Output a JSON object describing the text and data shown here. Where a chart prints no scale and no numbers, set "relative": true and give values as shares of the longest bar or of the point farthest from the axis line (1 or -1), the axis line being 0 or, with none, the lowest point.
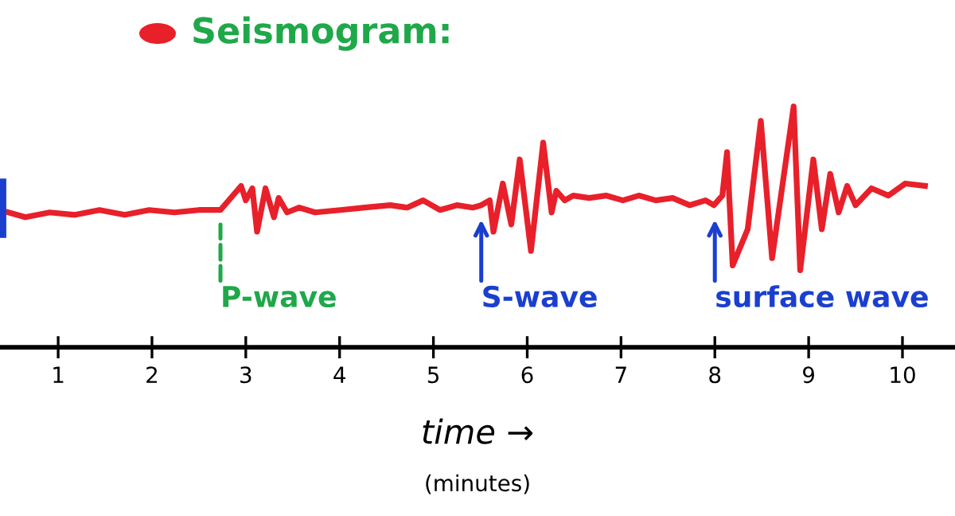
{
  "chart_data": {
    "type": "line",
    "title": "Seismogram:",
    "xlabel": "time →",
    "relative": true,
    "x": [
      0.47,
      0.65,
      0.91,
      1.18,
      1.44,
      1.71,
      1.97,
      2.24,
      2.5,
      2.73,
      2.95,
      3.0,
      3.07,
      3.12,
      3.21,
      3.3,
      3.35,
      3.44,
      3.57,
      3.74,
      4.01,
      4.27,
      4.54,
      4.72,
      4.89,
      5.07,
      5.25,
      5.42,
      5.51,
      5.6,
      5.64,
      5.74,
      5.83,
      5.92,
      6.04,
      6.17,
      6.26,
      6.31,
      6.4,
      6.49,
      6.66,
      6.84,
      7.02,
      7.19,
      7.37,
      7.55,
      7.73,
      7.9,
      7.99,
      8.08,
      8.13,
      8.19,
      8.35,
      8.49,
      8.61,
      8.84,
      8.91,
      9.05,
      9.14,
      9.23,
      9.32,
      9.41,
      9.5,
      9.67,
      9.85,
      10.03,
      10.24
    ],
    "series": [
      {
        "color": "#e8202a",
        "values": [
          0.56,
          0.54,
          0.56,
          0.55,
          0.57,
          0.55,
          0.57,
          0.56,
          0.57,
          0.57,
          0.67,
          0.61,
          0.66,
          0.48,
          0.66,
          0.54,
          0.62,
          0.56,
          0.58,
          0.56,
          0.57,
          0.58,
          0.59,
          0.58,
          0.61,
          0.57,
          0.59,
          0.58,
          0.59,
          0.61,
          0.48,
          0.68,
          0.51,
          0.78,
          0.4,
          0.85,
          0.56,
          0.65,
          0.61,
          0.63,
          0.62,
          0.63,
          0.61,
          0.63,
          0.61,
          0.62,
          0.59,
          0.61,
          0.59,
          0.63,
          0.81,
          0.34,
          0.49,
          0.94,
          0.37,
          1,
          0.32,
          0.78,
          0.49,
          0.72,
          0.56,
          0.67,
          0.59,
          0.66,
          0.63,
          0.68,
          0.67
        ]
      }
    ],
    "xlim": [
      0.38,
      10.56
    ],
    "xticks": [
      1,
      2,
      3,
      4,
      5,
      6,
      7,
      8,
      9,
      10
    ],
    "tick_labels": "x",
    "ref_lines": [
      {
        "axis": "x",
        "value": 0.4,
        "label": null,
        "color": "#1a3fd0"
      }
    ],
    "annotations": [
      {
        "text": "P-wave",
        "x": 2.73,
        "y": 0.57
      },
      {
        "text": "S-wave",
        "x": 5.51,
        "y": 0.59
      },
      {
        "text": "surface wave",
        "x": 8.0,
        "y": 0.59
      },
      "(minutes)"
    ],
    "grid": false,
    "legend": false,
    "marker": "none",
    "line_style": "solid"
  }
}
